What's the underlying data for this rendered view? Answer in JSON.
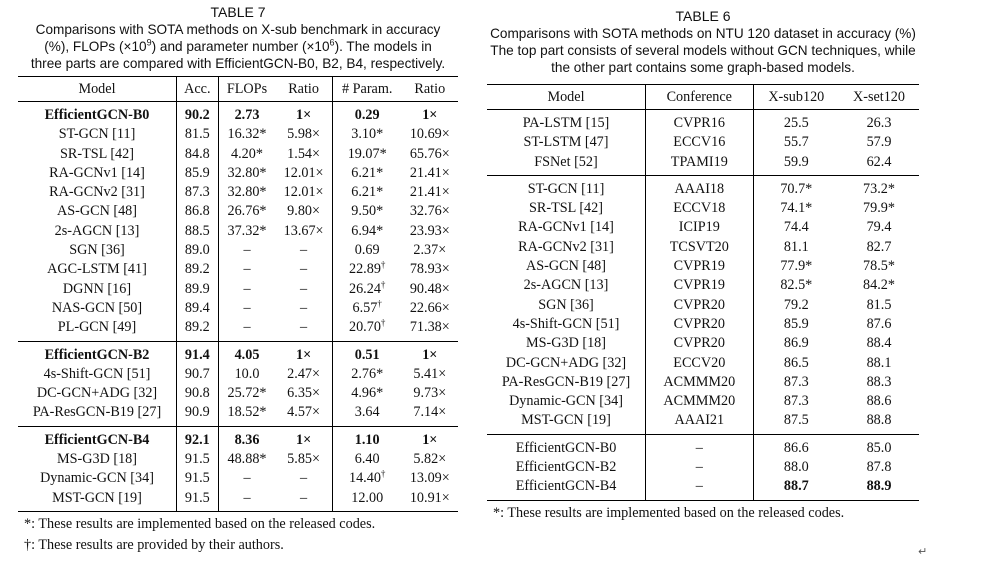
{
  "table7": {
    "number": "TABLE 7",
    "caption": {
      "line1": "Comparisons with SOTA methods on X-sub benchmark in accuracy",
      "line2_pre": "(%), FLOPs (×10",
      "line2_sup1": "9",
      "line2_mid": ") and parameter number (×10",
      "line2_sup2": "6",
      "line2_post": "). The models in",
      "line3": "three parts are compared with EfficientGCN-B0, B2, B4, respectively."
    },
    "headers": [
      "Model",
      "Acc.",
      "FLOPs",
      "Ratio",
      "# Param.",
      "Ratio"
    ],
    "groups": [
      {
        "rows": [
          {
            "model": "EfficientGCN-B0",
            "acc": "90.2",
            "flops": "2.73",
            "ratio1": "1×",
            "param": "0.29",
            "param_sup": "",
            "ratio2": "1×",
            "bold": true
          },
          {
            "model": "ST-GCN [11]",
            "acc": "81.5",
            "flops": "16.32*",
            "ratio1": "5.98×",
            "param": "3.10*",
            "param_sup": "",
            "ratio2": "10.69×"
          },
          {
            "model": "SR-TSL [42]",
            "acc": "84.8",
            "flops": "4.20*",
            "ratio1": "1.54×",
            "param": "19.07*",
            "param_sup": "",
            "ratio2": "65.76×"
          },
          {
            "model": "RA-GCNv1 [14]",
            "acc": "85.9",
            "flops": "32.80*",
            "ratio1": "12.01×",
            "param": "6.21*",
            "param_sup": "",
            "ratio2": "21.41×"
          },
          {
            "model": "RA-GCNv2 [31]",
            "acc": "87.3",
            "flops": "32.80*",
            "ratio1": "12.01×",
            "param": "6.21*",
            "param_sup": "",
            "ratio2": "21.41×"
          },
          {
            "model": "AS-GCN [48]",
            "acc": "86.8",
            "flops": "26.76*",
            "ratio1": "9.80×",
            "param": "9.50*",
            "param_sup": "",
            "ratio2": "32.76×"
          },
          {
            "model": "2s-AGCN [13]",
            "acc": "88.5",
            "flops": "37.32*",
            "ratio1": "13.67×",
            "param": "6.94*",
            "param_sup": "",
            "ratio2": "23.93×"
          },
          {
            "model": "SGN [36]",
            "acc": "89.0",
            "flops": "–",
            "ratio1": "–",
            "param": "0.69",
            "param_sup": "",
            "ratio2": "2.37×"
          },
          {
            "model": "AGC-LSTM [41]",
            "acc": "89.2",
            "flops": "–",
            "ratio1": "–",
            "param": "22.89",
            "param_sup": "†",
            "ratio2": "78.93×"
          },
          {
            "model": "DGNN [16]",
            "acc": "89.9",
            "flops": "–",
            "ratio1": "–",
            "param": "26.24",
            "param_sup": "†",
            "ratio2": "90.48×"
          },
          {
            "model": "NAS-GCN [50]",
            "acc": "89.4",
            "flops": "–",
            "ratio1": "–",
            "param": "6.57",
            "param_sup": "†",
            "ratio2": "22.66×"
          },
          {
            "model": "PL-GCN [49]",
            "acc": "89.2",
            "flops": "–",
            "ratio1": "–",
            "param": "20.70",
            "param_sup": "†",
            "ratio2": "71.38×"
          }
        ]
      },
      {
        "rows": [
          {
            "model": "EfficientGCN-B2",
            "acc": "91.4",
            "flops": "4.05",
            "ratio1": "1×",
            "param": "0.51",
            "param_sup": "",
            "ratio2": "1×",
            "bold": true
          },
          {
            "model": "4s-Shift-GCN [51]",
            "acc": "90.7",
            "flops": "10.0",
            "ratio1": "2.47×",
            "param": "2.76*",
            "param_sup": "",
            "ratio2": "5.41×"
          },
          {
            "model": "DC-GCN+ADG [32]",
            "acc": "90.8",
            "flops": "25.72*",
            "ratio1": "6.35×",
            "param": "4.96*",
            "param_sup": "",
            "ratio2": "9.73×"
          },
          {
            "model": "PA-ResGCN-B19 [27]",
            "acc": "90.9",
            "flops": "18.52*",
            "ratio1": "4.57×",
            "param": "3.64",
            "param_sup": "",
            "ratio2": "7.14×"
          }
        ]
      },
      {
        "rows": [
          {
            "model": "EfficientGCN-B4",
            "acc": "92.1",
            "flops": "8.36",
            "ratio1": "1×",
            "param": "1.10",
            "param_sup": "",
            "ratio2": "1×",
            "bold": true
          },
          {
            "model": "MS-G3D [18]",
            "acc": "91.5",
            "flops": "48.88*",
            "ratio1": "5.85×",
            "param": "6.40",
            "param_sup": "",
            "ratio2": "5.82×"
          },
          {
            "model": "Dynamic-GCN [34]",
            "acc": "91.5",
            "flops": "–",
            "ratio1": "–",
            "param": "14.40",
            "param_sup": "†",
            "ratio2": "13.09×"
          },
          {
            "model": "MST-GCN [19]",
            "acc": "91.5",
            "flops": "–",
            "ratio1": "–",
            "param": "12.00",
            "param_sup": "",
            "ratio2": "10.91×"
          }
        ]
      }
    ],
    "footnotes": [
      "*: These results are implemented based on the released codes.",
      "†: These results are provided by their authors."
    ]
  },
  "table6": {
    "number": "TABLE 6",
    "caption": [
      "Comparisons with SOTA methods on NTU 120 dataset in accuracy (%)",
      "The top part consists of several models without GCN techniques, while",
      "the other part contains some graph-based models."
    ],
    "headers": [
      "Model",
      "Conference",
      "X-sub120",
      "X-set120"
    ],
    "groups": [
      {
        "rows": [
          {
            "model": "PA-LSTM [15]",
            "conf": "CVPR16",
            "xsub": "25.5",
            "xset": "26.3"
          },
          {
            "model": "ST-LSTM [47]",
            "conf": "ECCV16",
            "xsub": "55.7",
            "xset": "57.9"
          },
          {
            "model": "FSNet [52]",
            "conf": "TPAMI19",
            "xsub": "59.9",
            "xset": "62.4"
          }
        ]
      },
      {
        "rows": [
          {
            "model": "ST-GCN [11]",
            "conf": "AAAI18",
            "xsub": "70.7*",
            "xset": "73.2*"
          },
          {
            "model": "SR-TSL [42]",
            "conf": "ECCV18",
            "xsub": "74.1*",
            "xset": "79.9*"
          },
          {
            "model": "RA-GCNv1 [14]",
            "conf": "ICIP19",
            "xsub": "74.4",
            "xset": "79.4"
          },
          {
            "model": "RA-GCNv2 [31]",
            "conf": "TCSVT20",
            "xsub": "81.1",
            "xset": "82.7"
          },
          {
            "model": "AS-GCN [48]",
            "conf": "CVPR19",
            "xsub": "77.9*",
            "xset": "78.5*"
          },
          {
            "model": "2s-AGCN [13]",
            "conf": "CVPR19",
            "xsub": "82.5*",
            "xset": "84.2*"
          },
          {
            "model": "SGN [36]",
            "conf": "CVPR20",
            "xsub": "79.2",
            "xset": "81.5"
          },
          {
            "model": "4s-Shift-GCN [51]",
            "conf": "CVPR20",
            "xsub": "85.9",
            "xset": "87.6"
          },
          {
            "model": "MS-G3D [18]",
            "conf": "CVPR20",
            "xsub": "86.9",
            "xset": "88.4"
          },
          {
            "model": "DC-GCN+ADG [32]",
            "conf": "ECCV20",
            "xsub": "86.5",
            "xset": "88.1"
          },
          {
            "model": "PA-ResGCN-B19 [27]",
            "conf": "ACMMM20",
            "xsub": "87.3",
            "xset": "88.3"
          },
          {
            "model": "Dynamic-GCN [34]",
            "conf": "ACMMM20",
            "xsub": "87.3",
            "xset": "88.6"
          },
          {
            "model": "MST-GCN [19]",
            "conf": "AAAI21",
            "xsub": "87.5",
            "xset": "88.8"
          }
        ]
      },
      {
        "rows": [
          {
            "model": "EfficientGCN-B0",
            "conf": "–",
            "xsub": "86.6",
            "xset": "85.0"
          },
          {
            "model": "EfficientGCN-B2",
            "conf": "–",
            "xsub": "88.0",
            "xset": "87.8"
          },
          {
            "model": "EfficientGCN-B4",
            "conf": "–",
            "xsub": "88.7",
            "xset": "88.9",
            "bold_values": true
          }
        ]
      }
    ],
    "footnotes": [
      "*: These results are implemented based on the released codes."
    ]
  },
  "return_mark": "↵"
}
